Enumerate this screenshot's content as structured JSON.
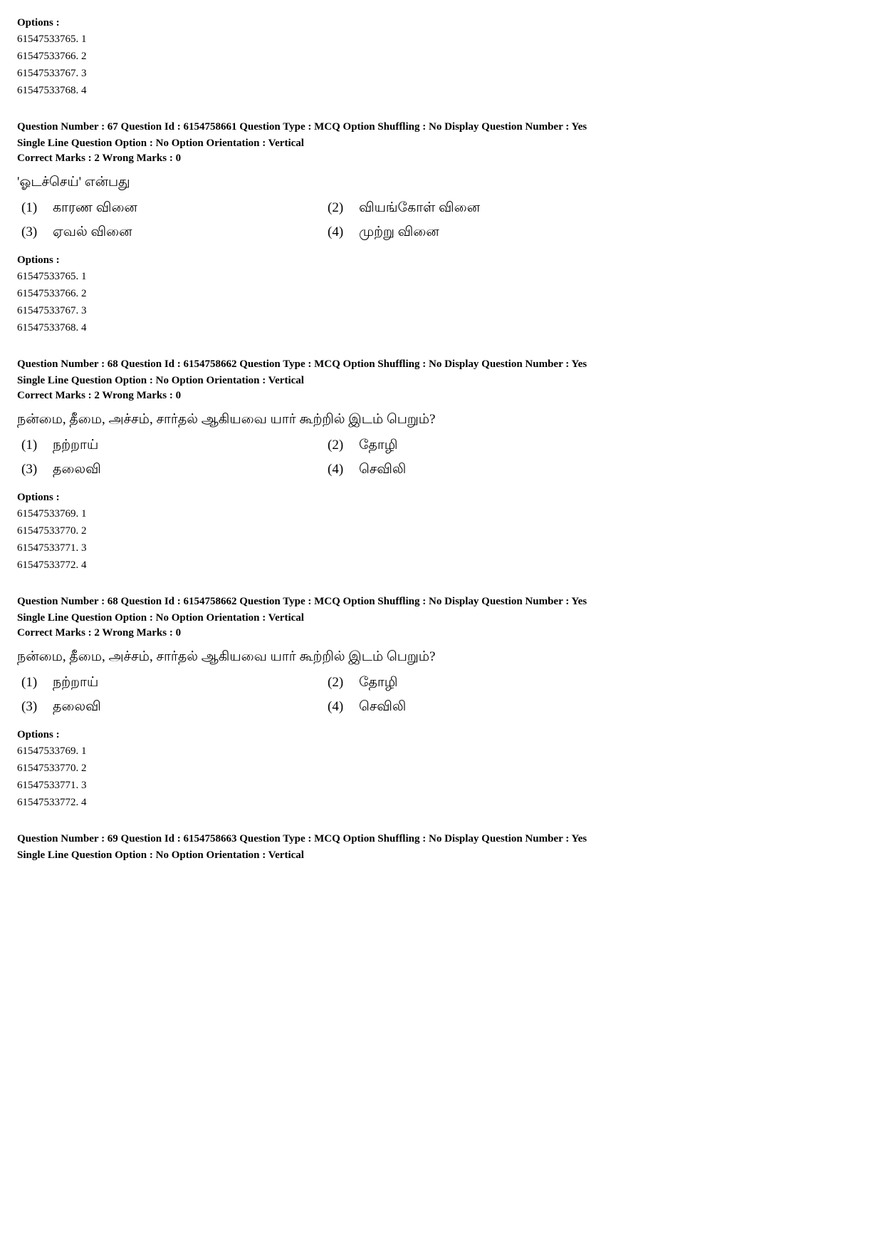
{
  "block0": {
    "options_label": "Options :",
    "options": [
      "61547533765. 1",
      "61547533766. 2",
      "61547533767. 3",
      "61547533768. 4"
    ]
  },
  "q67": {
    "meta_line1": "Question Number : 67  Question Id : 6154758661  Question Type : MCQ  Option Shuffling : No  Display Question Number : Yes",
    "meta_line2": "Single Line Question Option : No  Option Orientation : Vertical",
    "marks": "Correct Marks : 2  Wrong Marks : 0",
    "question_text": "'ஓடச்செய்' என்பது",
    "choices": [
      {
        "num": "(1)",
        "text": "காரண வினை"
      },
      {
        "num": "(2)",
        "text": "வியங்கோள் வினை"
      },
      {
        "num": "(3)",
        "text": "ஏவல் வினை"
      },
      {
        "num": "(4)",
        "text": "முற்று வினை"
      }
    ],
    "options_label": "Options :",
    "options": [
      "61547533765. 1",
      "61547533766. 2",
      "61547533767. 3",
      "61547533768. 4"
    ]
  },
  "q68a": {
    "meta_line1": "Question Number : 68  Question Id : 6154758662  Question Type : MCQ  Option Shuffling : No  Display Question Number : Yes",
    "meta_line2": "Single Line Question Option : No  Option Orientation : Vertical",
    "marks": "Correct Marks : 2  Wrong Marks : 0",
    "question_text": "நன்மை, தீமை, அச்சம், சார்தல் ஆகியவை   யார் கூற்றில் இடம் பெறும்?",
    "choices": [
      {
        "num": "(1)",
        "text": "நற்றாய்"
      },
      {
        "num": "(2)",
        "text": "தோழி"
      },
      {
        "num": "(3)",
        "text": "தலைவி"
      },
      {
        "num": "(4)",
        "text": "செவிலி"
      }
    ],
    "options_label": "Options :",
    "options": [
      "61547533769. 1",
      "61547533770. 2",
      "61547533771. 3",
      "61547533772. 4"
    ]
  },
  "q68b": {
    "meta_line1": "Question Number : 68  Question Id : 6154758662  Question Type : MCQ  Option Shuffling : No  Display Question Number : Yes",
    "meta_line2": "Single Line Question Option : No  Option Orientation : Vertical",
    "marks": "Correct Marks : 2  Wrong Marks : 0",
    "question_text": "நன்மை, தீமை, அச்சம், சார்தல் ஆகியவை   யார் கூற்றில் இடம் பெறும்?",
    "choices": [
      {
        "num": "(1)",
        "text": "நற்றாய்"
      },
      {
        "num": "(2)",
        "text": "தோழி"
      },
      {
        "num": "(3)",
        "text": "தலைவி"
      },
      {
        "num": "(4)",
        "text": "செவிலி"
      }
    ],
    "options_label": "Options :",
    "options": [
      "61547533769. 1",
      "61547533770. 2",
      "61547533771. 3",
      "61547533772. 4"
    ]
  },
  "q69": {
    "meta_line1": "Question Number : 69  Question Id : 6154758663  Question Type : MCQ  Option Shuffling : No  Display Question Number : Yes",
    "meta_line2": "Single Line Question Option : No  Option Orientation : Vertical"
  }
}
